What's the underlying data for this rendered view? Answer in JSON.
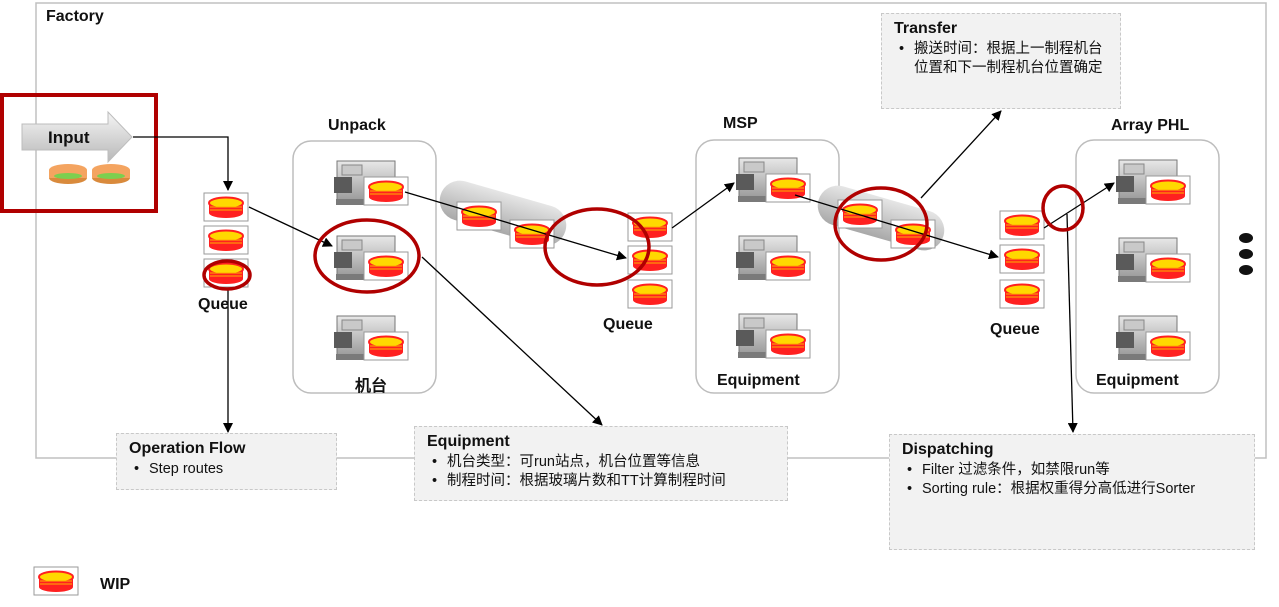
{
  "labels": {
    "factory": "Factory",
    "input": "Input",
    "queue1": "Queue",
    "unpack": "Unpack",
    "machine": "机台",
    "queue2": "Queue",
    "msp": "MSP",
    "msp_equipment": "Equipment",
    "queue3": "Queue",
    "array_phl": "Array PHL",
    "array_equipment": "Equipment"
  },
  "callouts": {
    "transfer": {
      "title": "Transfer",
      "items": [
        "搬送时间：根据上一制程机台位置和下一制程机台位置确定"
      ]
    },
    "operation_flow": {
      "title": "Operation Flow",
      "items": [
        "Step routes"
      ]
    },
    "equipment": {
      "title": "Equipment",
      "items": [
        "机台类型：可run站点，机台位置等信息",
        "制程时间：根据玻璃片数和TT计算制程时间"
      ]
    },
    "dispatching": {
      "title": "Dispatching",
      "items": [
        "Filter 过滤条件，如禁限run等",
        "Sorting rule：根据权重得分高低进行Sorter"
      ]
    }
  },
  "legend": {
    "label": "WIP"
  },
  "colors": {
    "wip_fill": "#ffd400",
    "wip_ring": "#ff1a1a",
    "highlight": "#b00000",
    "frame": "#c0c0c0"
  }
}
